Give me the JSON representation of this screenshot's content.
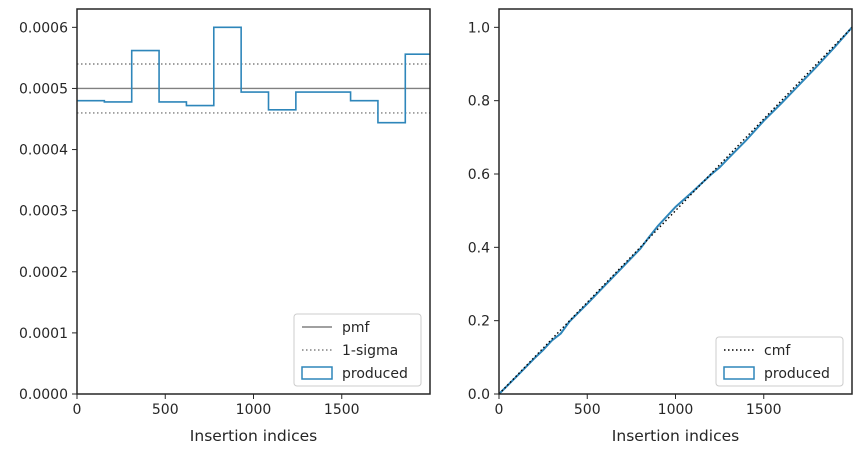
{
  "colors": {
    "produced": "#2e86ba",
    "pmf": "#808080",
    "sigma": "#808080",
    "cmf": "#000000",
    "axes": "#262626",
    "legend_border": "#cccccc"
  },
  "chart_data": [
    {
      "type": "line",
      "xlabel": "Insertion indices",
      "ylabel": "",
      "xlim": [
        0,
        2000
      ],
      "ylim": [
        0,
        0.00063
      ],
      "xticks": [
        0,
        500,
        1000,
        1500
      ],
      "xtick_labels": [
        "0",
        "500",
        "1000",
        "1500"
      ],
      "yticks": [
        0,
        0.0001,
        0.0002,
        0.0003,
        0.0004,
        0.0005,
        0.0006
      ],
      "ytick_labels": [
        "0.0000",
        "0.0001",
        "0.0002",
        "0.0003",
        "0.0004",
        "0.0005",
        "0.0006"
      ],
      "legend_position": "lower right",
      "legend": [
        {
          "label": "pmf",
          "style": "solid",
          "color": "#808080"
        },
        {
          "label": "1-sigma",
          "style": "dotted",
          "color": "#808080"
        },
        {
          "label": "produced",
          "style": "step-patch",
          "color": "#2e86ba"
        }
      ],
      "pmf": 0.0005,
      "sigma_band": [
        0.00046,
        0.00054
      ],
      "produced_bins": {
        "edges": [
          0,
          155,
          310,
          465,
          620,
          775,
          930,
          1085,
          1240,
          1395,
          1550,
          1705,
          1860,
          2000
        ],
        "values": [
          0.00048,
          0.000478,
          0.000562,
          0.000478,
          0.000472,
          0.0006,
          0.000494,
          0.000465,
          0.000494,
          0.000494,
          0.00048,
          0.000444,
          0.000556
        ]
      }
    },
    {
      "type": "line",
      "xlabel": "Insertion indices",
      "ylabel": "",
      "xlim": [
        0,
        2000
      ],
      "ylim": [
        0,
        1.05
      ],
      "xticks": [
        0,
        500,
        1000,
        1500
      ],
      "xtick_labels": [
        "0",
        "500",
        "1000",
        "1500"
      ],
      "yticks": [
        0,
        0.2,
        0.4,
        0.6,
        0.8,
        1.0
      ],
      "ytick_labels": [
        "0.0",
        "0.2",
        "0.4",
        "0.6",
        "0.8",
        "1.0"
      ],
      "legend_position": "lower right",
      "legend": [
        {
          "label": "cmf",
          "style": "dotted",
          "color": "#000000"
        },
        {
          "label": "produced",
          "style": "step-patch",
          "color": "#2e86ba"
        }
      ],
      "cmf": {
        "x": [
          0,
          2000
        ],
        "y": [
          0,
          1.0
        ]
      },
      "produced_cdf": {
        "x": [
          0,
          100,
          200,
          250,
          300,
          350,
          400,
          500,
          600,
          700,
          800,
          850,
          900,
          1000,
          1100,
          1200,
          1250,
          1300,
          1400,
          1500,
          1600,
          1700,
          1800,
          1900,
          2000
        ],
        "y": [
          0,
          0.048,
          0.097,
          0.12,
          0.146,
          0.165,
          0.198,
          0.246,
          0.296,
          0.346,
          0.396,
          0.428,
          0.458,
          0.51,
          0.553,
          0.598,
          0.618,
          0.643,
          0.692,
          0.745,
          0.793,
          0.843,
          0.893,
          0.945,
          1.0
        ]
      }
    }
  ]
}
